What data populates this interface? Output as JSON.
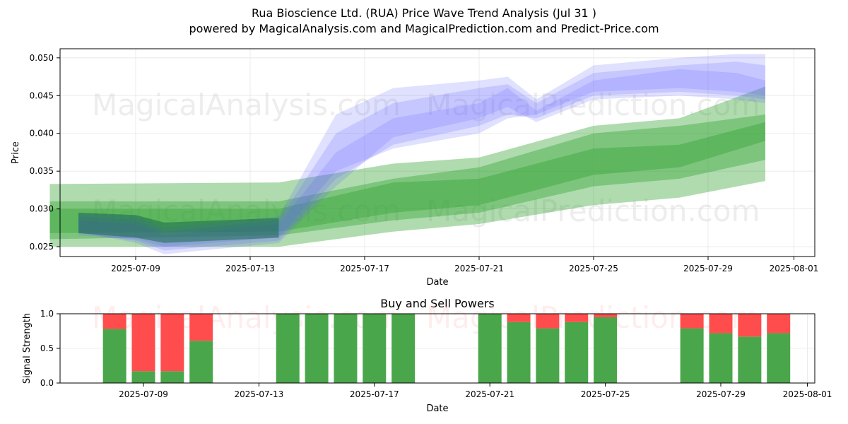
{
  "title": "Rua Bioscience Ltd. (RUA) Price Wave Trend Analysis (Jul 31 )",
  "subtitle": "powered by MagicalAnalysis.com and MagicalPrediction.com and Predict-Price.com",
  "watermarks": [
    "MagicalAnalysis.com",
    "MagicalPrediction.com"
  ],
  "colors": {
    "green": "#2ca02c",
    "blue": "#6666ff",
    "buy": "#4aa64a",
    "sell": "#ff4d4d",
    "dark_green": "#1a6b4a"
  },
  "chart_data": [
    {
      "type": "area",
      "xlabel": "Date",
      "ylabel": "Price",
      "ylim": [
        0.0237,
        0.0512
      ],
      "x_ticks": [
        "2025-07-09",
        "2025-07-13",
        "2025-07-17",
        "2025-07-21",
        "2025-07-25",
        "2025-07-29",
        "2025-08-01"
      ],
      "y_ticks": [
        "0.025",
        "0.030",
        "0.035",
        "0.040",
        "0.045",
        "0.050"
      ],
      "grid": true,
      "green_bands": [
        {
          "x": [
            "2025-07-06",
            "2025-07-14",
            "2025-07-18",
            "2025-07-21",
            "2025-07-25",
            "2025-07-28",
            "2025-07-31"
          ],
          "upper": [
            0.0333,
            0.0335,
            0.036,
            0.0368,
            0.041,
            0.042,
            0.0462
          ],
          "lower": [
            0.025,
            0.025,
            0.027,
            0.028,
            0.0305,
            0.0315,
            0.0337
          ]
        },
        {
          "x": [
            "2025-07-06",
            "2025-07-14",
            "2025-07-18",
            "2025-07-21",
            "2025-07-25",
            "2025-07-28",
            "2025-07-31"
          ],
          "upper": [
            0.031,
            0.031,
            0.034,
            0.0355,
            0.04,
            0.041,
            0.0425
          ],
          "lower": [
            0.026,
            0.0265,
            0.0285,
            0.0295,
            0.033,
            0.034,
            0.0365
          ]
        },
        {
          "x": [
            "2025-07-06",
            "2025-07-14",
            "2025-07-18",
            "2025-07-21",
            "2025-07-25",
            "2025-07-28",
            "2025-07-31"
          ],
          "upper": [
            0.03,
            0.03,
            0.0335,
            0.034,
            0.038,
            0.0385,
            0.0415
          ],
          "lower": [
            0.0268,
            0.027,
            0.0295,
            0.0305,
            0.0345,
            0.0355,
            0.039
          ]
        }
      ],
      "blue_bands": [
        {
          "x": [
            "2025-07-07",
            "2025-07-09",
            "2025-07-10",
            "2025-07-14",
            "2025-07-16",
            "2025-07-18",
            "2025-07-21",
            "2025-07-22",
            "2025-07-23",
            "2025-07-25",
            "2025-07-28",
            "2025-07-30",
            "2025-07-31"
          ],
          "upper": [
            0.0295,
            0.029,
            0.0275,
            0.029,
            0.0425,
            0.046,
            0.047,
            0.0475,
            0.0445,
            0.049,
            0.05,
            0.0505,
            0.0505
          ],
          "lower": [
            0.027,
            0.0255,
            0.024,
            0.0255,
            0.033,
            0.0395,
            0.042,
            0.0435,
            0.0415,
            0.0445,
            0.045,
            0.0445,
            0.044
          ]
        },
        {
          "x": [
            "2025-07-07",
            "2025-07-09",
            "2025-07-10",
            "2025-07-14",
            "2025-07-16",
            "2025-07-18",
            "2025-07-21",
            "2025-07-22",
            "2025-07-23",
            "2025-07-25",
            "2025-07-28",
            "2025-07-30",
            "2025-07-31"
          ],
          "upper": [
            0.029,
            0.0285,
            0.027,
            0.0285,
            0.04,
            0.044,
            0.046,
            0.0465,
            0.044,
            0.048,
            0.049,
            0.0495,
            0.049
          ],
          "lower": [
            0.0268,
            0.0258,
            0.0245,
            0.0258,
            0.034,
            0.0385,
            0.041,
            0.0425,
            0.042,
            0.045,
            0.0455,
            0.045,
            0.0445
          ]
        },
        {
          "x": [
            "2025-07-07",
            "2025-07-09",
            "2025-07-10",
            "2025-07-14",
            "2025-07-16",
            "2025-07-18",
            "2025-07-21",
            "2025-07-22",
            "2025-07-23",
            "2025-07-25",
            "2025-07-28",
            "2025-07-30",
            "2025-07-31"
          ],
          "upper": [
            0.0285,
            0.028,
            0.0265,
            0.028,
            0.0375,
            0.042,
            0.044,
            0.046,
            0.043,
            0.047,
            0.0485,
            0.048,
            0.047
          ],
          "lower": [
            0.0265,
            0.026,
            0.025,
            0.0262,
            0.035,
            0.038,
            0.04,
            0.042,
            0.0425,
            0.0455,
            0.046,
            0.0455,
            0.045
          ]
        }
      ]
    },
    {
      "type": "bar",
      "title": "Buy and Sell Powers",
      "xlabel": "Date",
      "ylabel": "Signal Strength",
      "ylim": [
        0,
        1
      ],
      "x_ticks": [
        "2025-07-09",
        "2025-07-13",
        "2025-07-17",
        "2025-07-21",
        "2025-07-25",
        "2025-07-29",
        "2025-08-01"
      ],
      "y_ticks": [
        "0.0",
        "0.5",
        "1.0"
      ],
      "grid": true,
      "categories": [
        "2025-07-08",
        "2025-07-09",
        "2025-07-10",
        "2025-07-11",
        "2025-07-14",
        "2025-07-15",
        "2025-07-16",
        "2025-07-17",
        "2025-07-18",
        "2025-07-21",
        "2025-07-22",
        "2025-07-23",
        "2025-07-24",
        "2025-07-25",
        "2025-07-28",
        "2025-07-29",
        "2025-07-30",
        "2025-07-31"
      ],
      "series": [
        {
          "name": "Buy",
          "values": [
            0.78,
            0.17,
            0.17,
            0.61,
            1.0,
            1.0,
            1.0,
            1.0,
            1.0,
            1.0,
            0.88,
            0.79,
            0.88,
            0.95,
            0.79,
            0.72,
            0.67,
            0.72
          ]
        },
        {
          "name": "Sell",
          "values": [
            0.22,
            0.83,
            0.83,
            0.39,
            0.0,
            0.0,
            0.0,
            0.0,
            0.0,
            0.0,
            0.12,
            0.21,
            0.12,
            0.05,
            0.21,
            0.28,
            0.33,
            0.28
          ]
        }
      ]
    }
  ]
}
